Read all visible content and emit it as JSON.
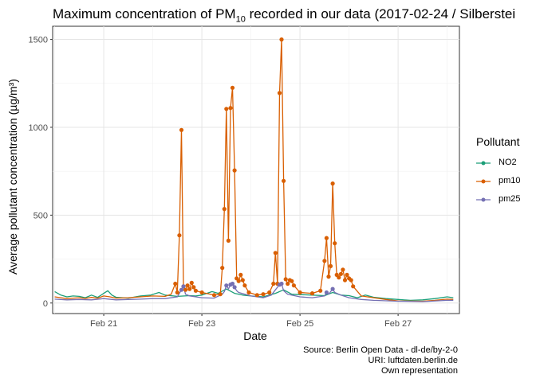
{
  "chart_data": {
    "type": "line",
    "title_prefix": "Maximum concentration of  PM",
    "title_sub": "10",
    "title_suffix": " recorded in our data (2017-02-24 / Silberstei",
    "xlabel": "Date",
    "ylabel": "Average pollutant concentration (µg/m³)",
    "ylim": [
      -60,
      1575
    ],
    "yticks": [
      0,
      500,
      1000,
      1500
    ],
    "xlim": [
      "2017-02-19T23:00",
      "2017-02-28T06:00"
    ],
    "xticks": [
      "2017-02-21",
      "2017-02-23",
      "2017-02-25",
      "2017-02-27"
    ],
    "xtick_labels": [
      "Feb 21",
      "Feb 23",
      "Feb 25",
      "Feb 27"
    ],
    "grid": true,
    "legend_title": "Pollutant",
    "legend_position": "right",
    "series": [
      {
        "name": "NO2",
        "color": "#1b9e77",
        "points": [
          [
            "2017-02-20T00:00",
            65
          ],
          [
            "2017-02-20T03:00",
            45
          ],
          [
            "2017-02-20T06:00",
            35
          ],
          [
            "2017-02-20T09:00",
            40
          ],
          [
            "2017-02-20T12:00",
            38
          ],
          [
            "2017-02-20T15:00",
            30
          ],
          [
            "2017-02-20T18:00",
            45
          ],
          [
            "2017-02-20T21:00",
            32
          ],
          [
            "2017-02-21T00:00",
            55
          ],
          [
            "2017-02-21T02:00",
            70
          ],
          [
            "2017-02-21T04:00",
            45
          ],
          [
            "2017-02-21T06:00",
            33
          ],
          [
            "2017-02-21T12:00",
            28
          ],
          [
            "2017-02-21T18:00",
            40
          ],
          [
            "2017-02-21T23:00",
            45
          ],
          [
            "2017-02-22T03:00",
            60
          ],
          [
            "2017-02-22T06:00",
            45
          ],
          [
            "2017-02-22T12:00",
            38
          ],
          [
            "2017-02-22T18:00",
            42
          ],
          [
            "2017-02-22T21:00",
            40
          ],
          [
            "2017-02-23T00:00",
            45
          ],
          [
            "2017-02-23T05:00",
            65
          ],
          [
            "2017-02-23T08:00",
            55
          ],
          [
            "2017-02-23T12:00",
            80
          ],
          [
            "2017-02-23T16:00",
            55
          ],
          [
            "2017-02-23T20:00",
            45
          ],
          [
            "2017-02-24T00:00",
            40
          ],
          [
            "2017-02-24T06:00",
            35
          ],
          [
            "2017-02-24T12:00",
            55
          ],
          [
            "2017-02-24T16:00",
            75
          ],
          [
            "2017-02-24T20:00",
            50
          ],
          [
            "2017-02-25T00:00",
            48
          ],
          [
            "2017-02-25T06:00",
            45
          ],
          [
            "2017-02-25T12:00",
            42
          ],
          [
            "2017-02-25T16:00",
            60
          ],
          [
            "2017-02-25T20:00",
            45
          ],
          [
            "2017-02-26T00:00",
            42
          ],
          [
            "2017-02-26T04:00",
            30
          ],
          [
            "2017-02-26T08:00",
            45
          ],
          [
            "2017-02-26T12:00",
            33
          ],
          [
            "2017-02-26T18:00",
            25
          ],
          [
            "2017-02-27T00:00",
            20
          ],
          [
            "2017-02-27T06:00",
            15
          ],
          [
            "2017-02-27T12:00",
            18
          ],
          [
            "2017-02-27T18:00",
            25
          ],
          [
            "2017-02-28T00:00",
            35
          ],
          [
            "2017-02-28T03:00",
            30
          ]
        ]
      },
      {
        "name": "pm10",
        "color": "#d95f02",
        "points": [
          [
            "2017-02-20T00:00",
            35
          ],
          [
            "2017-02-20T03:00",
            30
          ],
          [
            "2017-02-20T06:00",
            25
          ],
          [
            "2017-02-20T09:00",
            28
          ],
          [
            "2017-02-20T12:00",
            30
          ],
          [
            "2017-02-20T15:00",
            26
          ],
          [
            "2017-02-20T18:00",
            32
          ],
          [
            "2017-02-20T21:00",
            28
          ],
          [
            "2017-02-21T00:00",
            40
          ],
          [
            "2017-02-21T03:00",
            35
          ],
          [
            "2017-02-21T06:00",
            28
          ],
          [
            "2017-02-21T12:00",
            30
          ],
          [
            "2017-02-21T18:00",
            35
          ],
          [
            "2017-02-22T00:00",
            40
          ],
          [
            "2017-02-22T06:00",
            38
          ],
          [
            "2017-02-22T09:00",
            50
          ],
          [
            "2017-02-22T11:00",
            110
          ],
          [
            "2017-02-22T12:00",
            60
          ],
          [
            "2017-02-22T13:00",
            385
          ],
          [
            "2017-02-22T14:00",
            985
          ],
          [
            "2017-02-22T15:00",
            95
          ],
          [
            "2017-02-22T16:00",
            75
          ],
          [
            "2017-02-22T17:00",
            100
          ],
          [
            "2017-02-22T18:00",
            80
          ],
          [
            "2017-02-22T19:00",
            115
          ],
          [
            "2017-02-22T20:00",
            90
          ],
          [
            "2017-02-22T21:00",
            70
          ],
          [
            "2017-02-23T00:00",
            60
          ],
          [
            "2017-02-23T06:00",
            45
          ],
          [
            "2017-02-23T09:00",
            50
          ],
          [
            "2017-02-23T10:00",
            200
          ],
          [
            "2017-02-23T11:00",
            535
          ],
          [
            "2017-02-23T12:00",
            1105
          ],
          [
            "2017-02-23T13:00",
            355
          ],
          [
            "2017-02-23T14:00",
            1110
          ],
          [
            "2017-02-23T15:00",
            1225
          ],
          [
            "2017-02-23T16:00",
            755
          ],
          [
            "2017-02-23T17:00",
            140
          ],
          [
            "2017-02-23T18:00",
            125
          ],
          [
            "2017-02-23T19:00",
            160
          ],
          [
            "2017-02-23T20:00",
            130
          ],
          [
            "2017-02-23T21:00",
            100
          ],
          [
            "2017-02-23T23:00",
            60
          ],
          [
            "2017-02-24T03:00",
            45
          ],
          [
            "2017-02-24T06:00",
            50
          ],
          [
            "2017-02-24T09:00",
            60
          ],
          [
            "2017-02-24T11:00",
            110
          ],
          [
            "2017-02-24T12:00",
            285
          ],
          [
            "2017-02-24T13:00",
            110
          ],
          [
            "2017-02-24T14:00",
            1195
          ],
          [
            "2017-02-24T15:00",
            1500
          ],
          [
            "2017-02-24T16:00",
            695
          ],
          [
            "2017-02-24T17:00",
            135
          ],
          [
            "2017-02-24T18:00",
            110
          ],
          [
            "2017-02-24T19:00",
            130
          ],
          [
            "2017-02-24T20:00",
            125
          ],
          [
            "2017-02-24T21:00",
            100
          ],
          [
            "2017-02-25T00:00",
            60
          ],
          [
            "2017-02-25T06:00",
            55
          ],
          [
            "2017-02-25T10:00",
            70
          ],
          [
            "2017-02-25T12:00",
            240
          ],
          [
            "2017-02-25T13:00",
            370
          ],
          [
            "2017-02-25T14:00",
            150
          ],
          [
            "2017-02-25T15:00",
            210
          ],
          [
            "2017-02-25T16:00",
            680
          ],
          [
            "2017-02-25T17:00",
            340
          ],
          [
            "2017-02-25T18:00",
            160
          ],
          [
            "2017-02-25T19:00",
            145
          ],
          [
            "2017-02-25T20:00",
            165
          ],
          [
            "2017-02-25T21:00",
            190
          ],
          [
            "2017-02-25T22:00",
            130
          ],
          [
            "2017-02-25T23:00",
            160
          ],
          [
            "2017-02-26T00:00",
            140
          ],
          [
            "2017-02-26T01:00",
            130
          ],
          [
            "2017-02-26T02:00",
            95
          ],
          [
            "2017-02-26T06:00",
            40
          ],
          [
            "2017-02-26T12:00",
            30
          ],
          [
            "2017-02-26T18:00",
            20
          ],
          [
            "2017-02-27T00:00",
            12
          ],
          [
            "2017-02-27T12:00",
            10
          ],
          [
            "2017-02-27T18:00",
            15
          ],
          [
            "2017-02-28T00:00",
            22
          ],
          [
            "2017-02-28T03:00",
            20
          ]
        ],
        "markers_from": "2017-02-22T11:00",
        "markers_to": "2017-02-26T02:00"
      },
      {
        "name": "pm25",
        "color": "#7570b3",
        "points": [
          [
            "2017-02-20T00:00",
            22
          ],
          [
            "2017-02-20T06:00",
            18
          ],
          [
            "2017-02-20T12:00",
            20
          ],
          [
            "2017-02-20T18:00",
            18
          ],
          [
            "2017-02-21T00:00",
            25
          ],
          [
            "2017-02-21T06:00",
            18
          ],
          [
            "2017-02-21T12:00",
            20
          ],
          [
            "2017-02-21T18:00",
            22
          ],
          [
            "2017-02-22T00:00",
            25
          ],
          [
            "2017-02-22T06:00",
            25
          ],
          [
            "2017-02-22T12:00",
            35
          ],
          [
            "2017-02-22T14:00",
            75
          ],
          [
            "2017-02-22T15:00",
            95
          ],
          [
            "2017-02-22T16:00",
            50
          ],
          [
            "2017-02-22T18:00",
            40
          ],
          [
            "2017-02-23T00:00",
            30
          ],
          [
            "2017-02-23T06:00",
            28
          ],
          [
            "2017-02-23T10:00",
            50
          ],
          [
            "2017-02-23T11:00",
            65
          ],
          [
            "2017-02-23T12:00",
            100
          ],
          [
            "2017-02-23T13:00",
            80
          ],
          [
            "2017-02-23T14:00",
            105
          ],
          [
            "2017-02-23T15:00",
            110
          ],
          [
            "2017-02-23T16:00",
            90
          ],
          [
            "2017-02-23T17:00",
            70
          ],
          [
            "2017-02-23T18:00",
            60
          ],
          [
            "2017-02-24T00:00",
            40
          ],
          [
            "2017-02-24T06:00",
            30
          ],
          [
            "2017-02-24T10:00",
            45
          ],
          [
            "2017-02-24T12:00",
            75
          ],
          [
            "2017-02-24T14:00",
            105
          ],
          [
            "2017-02-24T15:00",
            110
          ],
          [
            "2017-02-24T16:00",
            70
          ],
          [
            "2017-02-24T18:00",
            50
          ],
          [
            "2017-02-25T00:00",
            35
          ],
          [
            "2017-02-25T06:00",
            30
          ],
          [
            "2017-02-25T12:00",
            40
          ],
          [
            "2017-02-25T13:00",
            60
          ],
          [
            "2017-02-25T14:00",
            50
          ],
          [
            "2017-02-25T16:00",
            80
          ],
          [
            "2017-02-25T17:00",
            60
          ],
          [
            "2017-02-25T20:00",
            45
          ],
          [
            "2017-02-26T00:00",
            30
          ],
          [
            "2017-02-26T06:00",
            20
          ],
          [
            "2017-02-26T12:00",
            15
          ],
          [
            "2017-02-27T00:00",
            10
          ],
          [
            "2017-02-27T12:00",
            8
          ],
          [
            "2017-02-28T00:00",
            15
          ],
          [
            "2017-02-28T03:00",
            15
          ]
        ],
        "marker_points": [
          [
            "2017-02-22T14:00",
            75
          ],
          [
            "2017-02-22T15:00",
            95
          ],
          [
            "2017-02-23T12:00",
            100
          ],
          [
            "2017-02-23T14:00",
            105
          ],
          [
            "2017-02-23T15:00",
            110
          ],
          [
            "2017-02-23T16:00",
            90
          ],
          [
            "2017-02-24T14:00",
            105
          ],
          [
            "2017-02-24T15:00",
            110
          ],
          [
            "2017-02-25T13:00",
            60
          ],
          [
            "2017-02-25T16:00",
            80
          ]
        ]
      }
    ]
  },
  "caption": {
    "line1": "Source: Berlin Open Data - dl-de/by-2-0",
    "line2": "URI: luftdaten.berlin.de",
    "line3": "Own representation"
  }
}
